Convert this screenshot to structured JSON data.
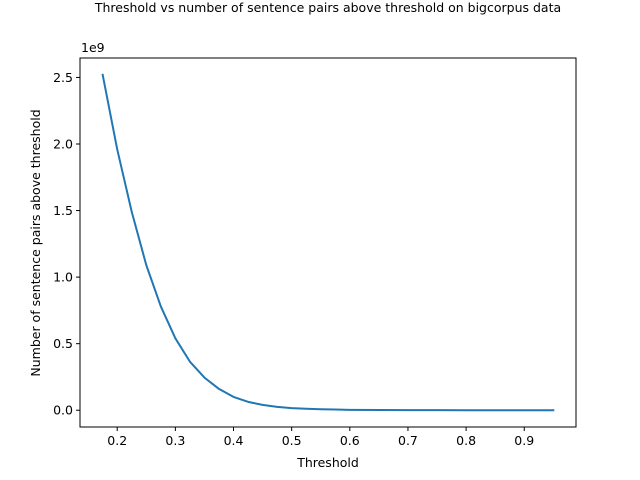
{
  "chart_data": {
    "type": "line",
    "title": "Threshold vs number of sentence pairs above threshold on bigcorpus data",
    "xlabel": "Threshold",
    "ylabel": "Number of sentence pairs above threshold",
    "y_offset_label": "1e9",
    "y_multiplier": 1000000000,
    "xlim": [
      0.136,
      0.989
    ],
    "ylim": [
      -0.126,
      2.646
    ],
    "grid": false,
    "legend": "none",
    "x_ticks": [
      0.2,
      0.3,
      0.4,
      0.5,
      0.6,
      0.7,
      0.8,
      0.9
    ],
    "x_tick_labels": [
      "0.2",
      "0.3",
      "0.4",
      "0.5",
      "0.6",
      "0.7",
      "0.8",
      "0.9"
    ],
    "y_ticks": [
      0.0,
      0.5,
      1.0,
      1.5,
      2.0,
      2.5
    ],
    "y_tick_labels": [
      "0.0",
      "0.5",
      "1.0",
      "1.5",
      "2.0",
      "2.5"
    ],
    "series": [
      {
        "color": "#1f77b4",
        "x": [
          0.175,
          0.2,
          0.225,
          0.25,
          0.275,
          0.3,
          0.325,
          0.35,
          0.375,
          0.4,
          0.425,
          0.45,
          0.475,
          0.5,
          0.525,
          0.55,
          0.575,
          0.6,
          0.65,
          0.7,
          0.75,
          0.8,
          0.85,
          0.9,
          0.95
        ],
        "values": [
          2.52,
          1.96,
          1.49,
          1.09,
          0.78,
          0.54,
          0.365,
          0.245,
          0.16,
          0.1,
          0.063,
          0.04,
          0.025,
          0.016,
          0.011,
          0.007,
          0.005,
          0.003,
          0.0015,
          0.0008,
          0.0004,
          0.0002,
          0.0001,
          0.0,
          0.0
        ]
      }
    ]
  }
}
